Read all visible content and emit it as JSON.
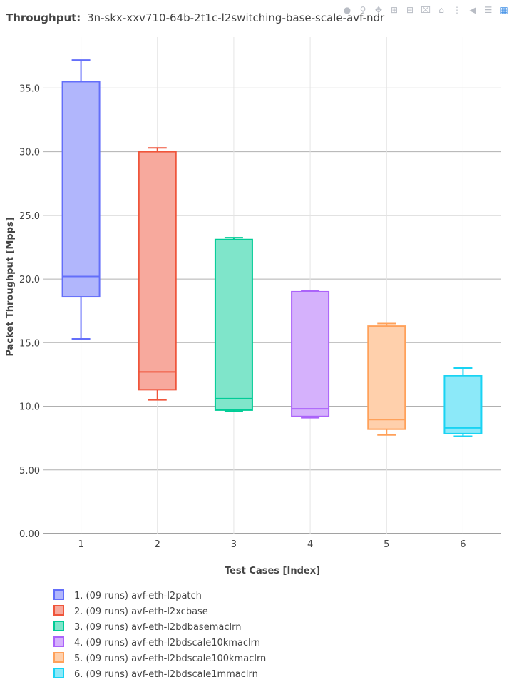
{
  "chart_data": {
    "type": "box",
    "title_bold": "Throughput:",
    "title_rest": "3n-skx-xxv710-64b-2t1c-l2switching-base-scale-avf-ndr",
    "xlabel": "Test Cases [Index]",
    "ylabel": "Packet Throughput [Mpps]",
    "ylim": [
      0,
      39
    ],
    "yticks": [
      0,
      5,
      10,
      15,
      20,
      25,
      30,
      35
    ],
    "ytick_labels": [
      "0.00",
      "5.00",
      "10.0",
      "15.0",
      "20.0",
      "25.0",
      "30.0",
      "35.0"
    ],
    "categories": [
      "1",
      "2",
      "3",
      "4",
      "5",
      "6"
    ],
    "legend_position": "bottom-left",
    "series": [
      {
        "name": "1. (09 runs) avf-eth-l2patch",
        "color": "#636efa",
        "fill": "#b1b6fc",
        "min": 15.3,
        "q1": 18.6,
        "median": 20.2,
        "q3": 35.5,
        "max": 37.2
      },
      {
        "name": "2. (09 runs) avf-eth-l2xcbase",
        "color": "#ef553b",
        "fill": "#f7a99d",
        "min": 10.5,
        "q1": 11.3,
        "median": 12.7,
        "q3": 30.0,
        "max": 30.3
      },
      {
        "name": "3. (09 runs) avf-eth-l2bdbasemaclrn",
        "color": "#00cc96",
        "fill": "#7fe5ca",
        "min": 9.6,
        "q1": 9.7,
        "median": 10.6,
        "q3": 23.1,
        "max": 23.25
      },
      {
        "name": "4. (09 runs) avf-eth-l2bdscale10kmaclrn",
        "color": "#ab63fa",
        "fill": "#d5b1fc",
        "min": 9.1,
        "q1": 9.2,
        "median": 9.8,
        "q3": 19.0,
        "max": 19.1
      },
      {
        "name": "5. (09 runs) avf-eth-l2bdscale100kmaclrn",
        "color": "#ffa15a",
        "fill": "#ffd0ac",
        "min": 7.75,
        "q1": 8.2,
        "median": 8.95,
        "q3": 16.3,
        "max": 16.5
      },
      {
        "name": "6. (09 runs) avf-eth-l2bdscale1mmaclrn",
        "color": "#19d3f3",
        "fill": "#8ce9f9",
        "min": 7.65,
        "q1": 7.85,
        "median": 8.3,
        "q3": 12.4,
        "max": 13.0
      }
    ]
  },
  "modebar": {
    "icons": [
      "camera-icon",
      "zoom-icon",
      "pan-icon",
      "zoom-in-icon",
      "zoom-out-icon",
      "autoscale-icon",
      "home-icon",
      "spike-lines-icon",
      "hover-closest-icon",
      "hover-compare-icon",
      "plotly-logo-icon"
    ]
  }
}
